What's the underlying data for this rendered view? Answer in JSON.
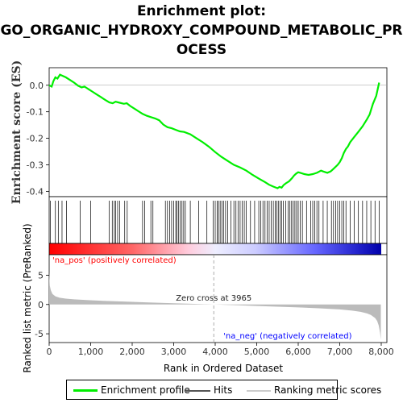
{
  "title_lines": [
    "Enrichment plot:",
    "GO_ORGANIC_HYDROXY_COMPOUND_METABOLIC_PR",
    "OCESS"
  ],
  "colors": {
    "enrichment": "#00ee00",
    "hits": "#000000",
    "ranking": "#bbbbbb",
    "pos_label": "#ff0000",
    "neg_label": "#0000ff",
    "zero_cross_line": "#999999"
  },
  "chart_data": [
    {
      "type": "line",
      "name": "enrichment",
      "ylabel": "Enrichment score (ES)",
      "xlim": [
        0,
        8000
      ],
      "ylim": [
        -0.42,
        0.06
      ],
      "yticks": [
        0.0,
        -0.1,
        -0.2,
        -0.3,
        -0.4
      ],
      "ytick_labels": [
        "0.0",
        "-0.1",
        "-0.2",
        "-0.3",
        "-0.4"
      ],
      "grid": false,
      "x": [
        0,
        60,
        100,
        150,
        200,
        260,
        330,
        400,
        500,
        600,
        700,
        780,
        850,
        900,
        950,
        1050,
        1150,
        1250,
        1350,
        1450,
        1530,
        1600,
        1700,
        1800,
        1870,
        1950,
        2050,
        2150,
        2250,
        2350,
        2450,
        2550,
        2650,
        2750,
        2850,
        2950,
        3050,
        3150,
        3250,
        3400,
        3550,
        3700,
        3850,
        4000,
        4150,
        4300,
        4450,
        4600,
        4750,
        4900,
        5050,
        5200,
        5300,
        5400,
        5450,
        5500,
        5550,
        5600,
        5650,
        5700,
        5780,
        5850,
        5900,
        5950,
        6000,
        6050,
        6150,
        6250,
        6350,
        6450,
        6550,
        6600,
        6700,
        6780,
        6850,
        6950,
        7000,
        7050,
        7100,
        7150,
        7200,
        7250,
        7350,
        7450,
        7550,
        7650,
        7720,
        7800,
        7880,
        7950
      ],
      "y": [
        0.0,
        -0.005,
        0.015,
        0.03,
        0.025,
        0.04,
        0.035,
        0.03,
        0.02,
        0.01,
        -0.002,
        -0.008,
        -0.005,
        -0.01,
        -0.015,
        -0.025,
        -0.035,
        -0.045,
        -0.055,
        -0.065,
        -0.068,
        -0.062,
        -0.066,
        -0.07,
        -0.068,
        -0.078,
        -0.088,
        -0.098,
        -0.108,
        -0.115,
        -0.12,
        -0.125,
        -0.132,
        -0.148,
        -0.158,
        -0.162,
        -0.168,
        -0.174,
        -0.176,
        -0.185,
        -0.2,
        -0.215,
        -0.232,
        -0.252,
        -0.27,
        -0.285,
        -0.3,
        -0.31,
        -0.322,
        -0.338,
        -0.352,
        -0.365,
        -0.375,
        -0.382,
        -0.385,
        -0.388,
        -0.383,
        -0.386,
        -0.376,
        -0.37,
        -0.362,
        -0.35,
        -0.34,
        -0.333,
        -0.328,
        -0.33,
        -0.335,
        -0.338,
        -0.335,
        -0.33,
        -0.322,
        -0.325,
        -0.33,
        -0.325,
        -0.315,
        -0.3,
        -0.29,
        -0.275,
        -0.255,
        -0.24,
        -0.23,
        -0.215,
        -0.195,
        -0.175,
        -0.155,
        -0.13,
        -0.11,
        -0.07,
        -0.04,
        0.01
      ]
    },
    {
      "type": "hits",
      "name": "hits",
      "positions": [
        30,
        150,
        220,
        310,
        420,
        750,
        1000,
        1450,
        1520,
        1570,
        1600,
        1650,
        1700,
        1820,
        1880,
        2250,
        2300,
        2450,
        2500,
        2800,
        2850,
        2900,
        2950,
        3000,
        3050,
        3080,
        3120,
        3160,
        3200,
        3240,
        3280,
        3400,
        3600,
        3800,
        3950,
        4000,
        4050,
        4080,
        4120,
        4160,
        4200,
        4250,
        4300,
        4380,
        4450,
        4500,
        4550,
        4600,
        4650,
        4700,
        4750,
        4850,
        4950,
        5050,
        5100,
        5150,
        5200,
        5250,
        5300,
        5350,
        5400,
        5450,
        5480,
        5520,
        5560,
        5600,
        5640,
        5700,
        5760,
        5800,
        5840,
        5880,
        5920,
        5960,
        6000,
        6050,
        6100,
        6200,
        6300,
        6350,
        6400,
        6450,
        6500,
        6600,
        6700,
        6800,
        6850,
        6900,
        6950,
        7000,
        7050,
        7100,
        7150,
        7250,
        7350,
        7450,
        7550,
        7650,
        7750,
        7850,
        7950
      ]
    },
    {
      "type": "area",
      "name": "ranking",
      "xlabel": "Rank in Ordered Dataset",
      "ylabel": "Ranked list metric (PreRanked)",
      "xlim": [
        0,
        8000
      ],
      "ylim": [
        -6.5,
        8.5
      ],
      "xticks": [
        0,
        1000,
        2000,
        3000,
        4000,
        5000,
        6000,
        7000,
        8000
      ],
      "xtick_labels": [
        "0",
        "1,000",
        "2,000",
        "3,000",
        "4,000",
        "5,000",
        "6,000",
        "7,000",
        "8,000"
      ],
      "yticks": [
        5,
        0,
        -5
      ],
      "ytick_labels": [
        "5",
        "0",
        "-5"
      ],
      "x": [
        0,
        15,
        40,
        80,
        150,
        250,
        400,
        600,
        900,
        1300,
        1800,
        2400,
        3000,
        3500,
        3965,
        4500,
        5000,
        5500,
        6000,
        6500,
        7000,
        7300,
        7500,
        7650,
        7750,
        7850,
        7900,
        7940,
        7970,
        7990
      ],
      "y": [
        5.5,
        3.2,
        2.4,
        1.8,
        1.4,
        1.15,
        1.0,
        0.88,
        0.75,
        0.62,
        0.5,
        0.35,
        0.22,
        0.1,
        0.0,
        -0.12,
        -0.25,
        -0.38,
        -0.5,
        -0.65,
        -0.85,
        -1.05,
        -1.25,
        -1.5,
        -1.8,
        -2.3,
        -2.8,
        -3.6,
        -4.8,
        -6.0
      ],
      "zero_cross": 3965,
      "zero_cross_label": "Zero cross at 3965",
      "pos_label": "'na_pos' (positively correlated)",
      "neg_label": "'na_neg' (negatively correlated)"
    }
  ],
  "legend": {
    "position": "bottom",
    "items": [
      {
        "label": "Enrichment profile",
        "color": "#00ee00"
      },
      {
        "label": "Hits",
        "color": "#555555"
      },
      {
        "label": "Ranking metric scores",
        "color": "#cccccc"
      }
    ]
  }
}
